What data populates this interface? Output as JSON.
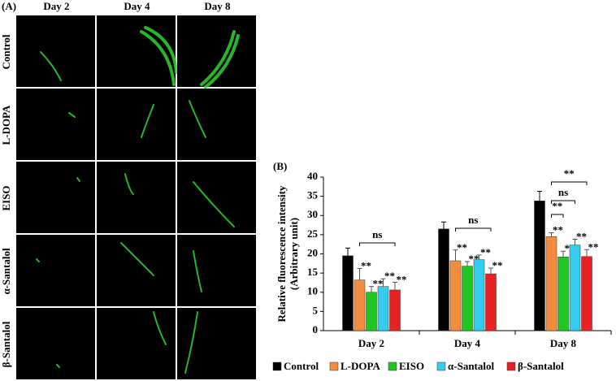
{
  "panel_a": {
    "label": "(A)",
    "columns": [
      "Day 2",
      "Day 4",
      "Day 8"
    ],
    "rows": [
      "Control",
      "L-DOPA",
      "EISO",
      "α-Santalol",
      "β-Santalol"
    ]
  },
  "chart_data": {
    "type": "bar",
    "panel_label": "(B)",
    "y_label": [
      "Relative fluorescence intensity",
      "(Arbitrary unit)"
    ],
    "categories": [
      "Day 2",
      "Day 4",
      "Day 8"
    ],
    "series": [
      {
        "name": "Control",
        "color": "#000000",
        "values": [
          19.5,
          26.5,
          33.8
        ],
        "errors": [
          2,
          1.8,
          2.5
        ]
      },
      {
        "name": "L-DOPA",
        "color": "#f28c3e",
        "values": [
          13.2,
          18.2,
          24.5
        ],
        "errors": [
          3,
          2.8,
          1
        ],
        "annotations": [
          "**",
          "**",
          "**"
        ]
      },
      {
        "name": "EISO",
        "color": "#22c622",
        "values": [
          10,
          16.8,
          19.2
        ],
        "errors": [
          1.5,
          1.2,
          1.5
        ],
        "annotations": [
          "**",
          "**",
          "**"
        ]
      },
      {
        "name": "α-Santalol",
        "color": "#35cdee",
        "values": [
          11.5,
          18.5,
          22.3
        ],
        "errors": [
          2,
          1.2,
          1.5
        ],
        "annotations": [
          "**",
          "**",
          "**"
        ]
      },
      {
        "name": "β-Santalol",
        "color": "#e82222",
        "values": [
          10.6,
          14.8,
          19.3
        ],
        "errors": [
          2,
          1.5,
          1.8
        ],
        "annotations": [
          "**",
          "**",
          "**"
        ]
      }
    ],
    "brackets": [
      {
        "label": "ns"
      },
      {
        "label": "ns"
      },
      {
        "label": "**"
      },
      {
        "label": "ns"
      },
      {
        "label": "**"
      }
    ],
    "ylim": [
      0,
      40
    ],
    "yticks": [
      0,
      5,
      10,
      15,
      20,
      25,
      30,
      35,
      40
    ],
    "grid": false
  }
}
